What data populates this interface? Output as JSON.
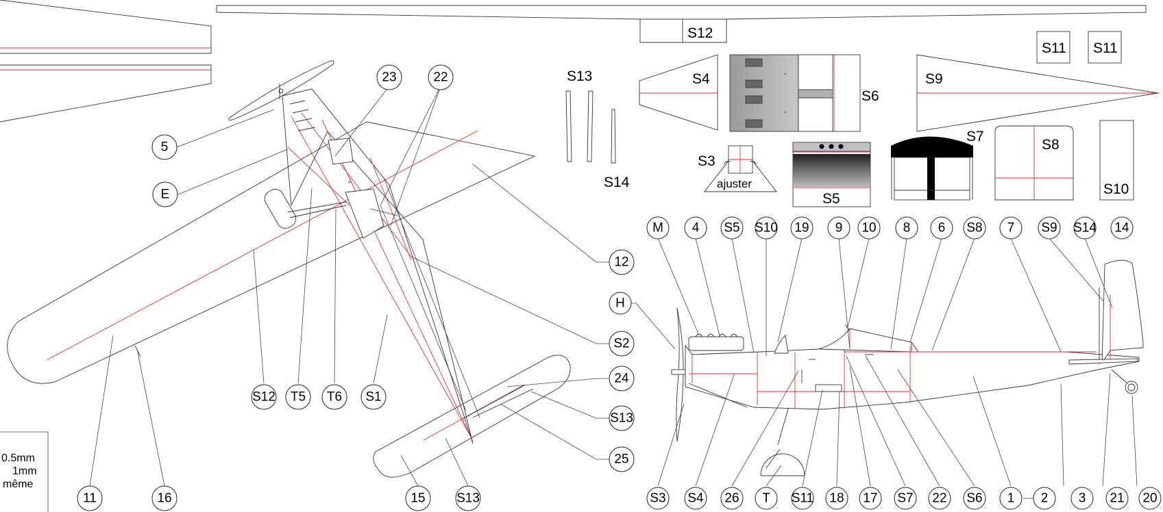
{
  "parts": {
    "S12": "S12",
    "S4": "S4",
    "S6": "S6",
    "S9": "S9",
    "S11a": "S11",
    "S11b": "S11",
    "S13": "S13",
    "S14": "S14",
    "S3": "S3",
    "ajuster": "ajuster",
    "S5": "S5",
    "S7": "S7",
    "S8": "S8",
    "S10": "S10"
  },
  "callouts_top": [
    "M",
    "4",
    "S5",
    "S10",
    "19",
    "9",
    "10",
    "8",
    "6",
    "S8",
    "7",
    "S9",
    "S14",
    "14"
  ],
  "callouts_bottom": [
    "S3",
    "S4",
    "26",
    "T",
    "S11",
    "18",
    "17",
    "S7",
    "22",
    "S6",
    "1",
    "2",
    "3",
    "21",
    "20"
  ],
  "callouts_side": [
    "H"
  ],
  "callouts_plan": [
    "23",
    "22",
    "5",
    "E",
    "12",
    "S2",
    "S12",
    "T5",
    "T6",
    "S1",
    "24",
    "S13",
    "25",
    "11",
    "16",
    "15",
    "S13"
  ],
  "legend": {
    "line1": "0.5mm",
    "line2": "1mm",
    "line3": "même"
  },
  "colors": {
    "line": "#333333",
    "rib": "#e03030",
    "gray": "#b4b4b4"
  }
}
